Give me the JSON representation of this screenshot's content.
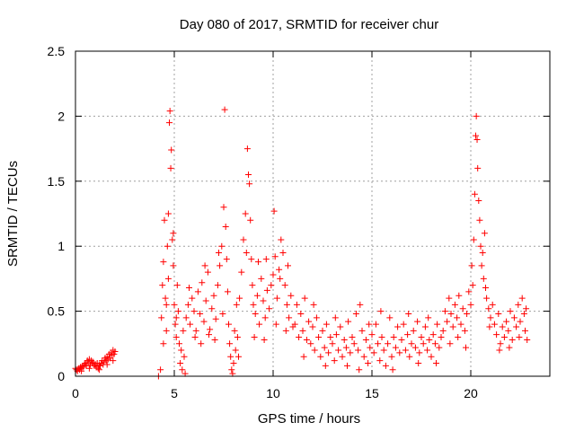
{
  "chart_data": {
    "type": "scatter",
    "title": "Day 080 of 2017, SRMTID for receiver chur",
    "xlabel": "GPS time / hours",
    "ylabel": "SRMTID / TECUs",
    "xlim": [
      0,
      24
    ],
    "ylim": [
      0,
      2.5
    ],
    "xticks": [
      0,
      5,
      10,
      15,
      20
    ],
    "xtick_labels": [
      "0",
      "5",
      "10",
      "15",
      "20"
    ],
    "yticks": [
      0,
      0.5,
      1,
      1.5,
      2,
      2.5
    ],
    "ytick_labels": [
      "0",
      "0.5",
      "1",
      "1.5",
      "2",
      "2.5"
    ],
    "grid": true,
    "marker": "+",
    "marker_color": "#ff0000",
    "series": [
      {
        "name": "SRMTID",
        "points": [
          [
            0.0,
            0.06
          ],
          [
            0.05,
            0.05
          ],
          [
            0.1,
            0.04
          ],
          [
            0.15,
            0.06
          ],
          [
            0.2,
            0.05
          ],
          [
            0.25,
            0.07
          ],
          [
            0.3,
            0.06
          ],
          [
            0.35,
            0.08
          ],
          [
            0.4,
            0.07
          ],
          [
            0.45,
            0.09
          ],
          [
            0.5,
            0.1
          ],
          [
            0.55,
            0.08
          ],
          [
            0.6,
            0.12
          ],
          [
            0.65,
            0.11
          ],
          [
            0.7,
            0.13
          ],
          [
            0.75,
            0.09
          ],
          [
            0.8,
            0.12
          ],
          [
            0.85,
            0.1
          ],
          [
            0.9,
            0.11
          ],
          [
            0.95,
            0.08
          ],
          [
            1.0,
            0.09
          ],
          [
            1.05,
            0.07
          ],
          [
            1.1,
            0.1
          ],
          [
            1.15,
            0.06
          ],
          [
            1.2,
            0.09
          ],
          [
            1.25,
            0.08
          ],
          [
            1.3,
            0.1
          ],
          [
            1.35,
            0.12
          ],
          [
            1.4,
            0.09
          ],
          [
            1.45,
            0.11
          ],
          [
            1.5,
            0.14
          ],
          [
            1.55,
            0.12
          ],
          [
            1.6,
            0.15
          ],
          [
            1.65,
            0.13
          ],
          [
            1.7,
            0.17
          ],
          [
            1.75,
            0.14
          ],
          [
            1.8,
            0.18
          ],
          [
            1.85,
            0.16
          ],
          [
            1.9,
            0.2
          ],
          [
            1.95,
            0.17
          ],
          [
            2.0,
            0.19
          ],
          [
            0.3,
            0.04
          ],
          [
            0.7,
            0.06
          ],
          [
            1.2,
            0.05
          ],
          [
            1.6,
            0.09
          ],
          [
            1.9,
            0.12
          ],
          [
            4.2,
            0.0
          ],
          [
            4.3,
            0.05
          ],
          [
            4.35,
            0.45
          ],
          [
            4.4,
            0.7
          ],
          [
            4.45,
            0.88
          ],
          [
            4.5,
            1.2
          ],
          [
            4.55,
            0.6
          ],
          [
            4.6,
            0.35
          ],
          [
            4.65,
            1.0
          ],
          [
            4.7,
            1.25
          ],
          [
            4.75,
            1.95
          ],
          [
            4.78,
            2.04
          ],
          [
            4.82,
            1.6
          ],
          [
            4.85,
            1.74
          ],
          [
            4.9,
            1.05
          ],
          [
            4.95,
            0.85
          ],
          [
            5.0,
            0.55
          ],
          [
            5.05,
            0.4
          ],
          [
            5.1,
            0.3
          ],
          [
            5.15,
            0.7
          ],
          [
            5.2,
            0.5
          ],
          [
            5.25,
            0.25
          ],
          [
            5.3,
            0.1
          ],
          [
            5.35,
            0.2
          ],
          [
            5.4,
            0.05
          ],
          [
            5.45,
            0.35
          ],
          [
            5.5,
            0.15
          ],
          [
            5.55,
            0.02
          ],
          [
            4.45,
            0.25
          ],
          [
            4.6,
            0.55
          ],
          [
            4.7,
            0.75
          ],
          [
            4.95,
            1.1
          ],
          [
            5.1,
            0.45
          ],
          [
            5.6,
            0.45
          ],
          [
            5.7,
            0.55
          ],
          [
            5.8,
            0.4
          ],
          [
            5.9,
            0.6
          ],
          [
            6.0,
            0.5
          ],
          [
            6.1,
            0.35
          ],
          [
            6.2,
            0.65
          ],
          [
            6.3,
            0.48
          ],
          [
            6.4,
            0.72
          ],
          [
            6.5,
            0.42
          ],
          [
            6.6,
            0.58
          ],
          [
            6.7,
            0.8
          ],
          [
            6.8,
            0.36
          ],
          [
            6.9,
            0.52
          ],
          [
            7.0,
            0.62
          ],
          [
            7.1,
            0.44
          ],
          [
            7.2,
            0.7
          ],
          [
            7.3,
            0.85
          ],
          [
            7.4,
            1.0
          ],
          [
            7.5,
            1.3
          ],
          [
            7.55,
            2.05
          ],
          [
            7.6,
            1.15
          ],
          [
            7.65,
            0.9
          ],
          [
            7.7,
            0.65
          ],
          [
            7.75,
            0.4
          ],
          [
            7.8,
            0.25
          ],
          [
            7.85,
            0.15
          ],
          [
            7.9,
            0.05
          ],
          [
            7.95,
            0.02
          ],
          [
            8.0,
            0.1
          ],
          [
            8.05,
            0.35
          ],
          [
            8.1,
            0.2
          ],
          [
            8.15,
            0.55
          ],
          [
            8.2,
            0.3
          ],
          [
            8.3,
            0.6
          ],
          [
            8.4,
            0.8
          ],
          [
            8.5,
            1.05
          ],
          [
            8.6,
            1.25
          ],
          [
            8.65,
            0.95
          ],
          [
            8.7,
            1.75
          ],
          [
            8.75,
            1.55
          ],
          [
            8.8,
            1.48
          ],
          [
            8.85,
            1.2
          ],
          [
            8.9,
            0.9
          ],
          [
            8.95,
            0.7
          ],
          [
            9.0,
            0.55
          ],
          [
            9.1,
            0.48
          ],
          [
            9.2,
            0.62
          ],
          [
            9.3,
            0.4
          ],
          [
            9.4,
            0.75
          ],
          [
            9.5,
            0.58
          ],
          [
            9.6,
            0.45
          ],
          [
            9.7,
            0.66
          ],
          [
            9.8,
            0.52
          ],
          [
            9.9,
            0.7
          ],
          [
            10.0,
            0.78
          ],
          [
            10.05,
            1.27
          ],
          [
            10.1,
            0.92
          ],
          [
            10.2,
            0.6
          ],
          [
            10.3,
            0.82
          ],
          [
            10.4,
            1.05
          ],
          [
            10.5,
            0.95
          ],
          [
            10.6,
            0.7
          ],
          [
            10.7,
            0.55
          ],
          [
            10.8,
            0.45
          ],
          [
            10.9,
            0.62
          ],
          [
            11.0,
            0.38
          ],
          [
            6.05,
            0.3
          ],
          [
            6.35,
            0.25
          ],
          [
            6.75,
            0.32
          ],
          [
            7.05,
            0.28
          ],
          [
            7.45,
            0.48
          ],
          [
            8.25,
            0.15
          ],
          [
            9.05,
            0.3
          ],
          [
            9.55,
            0.28
          ],
          [
            10.15,
            0.4
          ],
          [
            10.65,
            0.35
          ],
          [
            5.75,
            0.68
          ],
          [
            6.55,
            0.85
          ],
          [
            7.25,
            0.95
          ],
          [
            9.25,
            0.88
          ],
          [
            9.65,
            0.9
          ],
          [
            10.35,
            0.75
          ],
          [
            10.75,
            0.85
          ],
          [
            11.1,
            0.4
          ],
          [
            11.2,
            0.55
          ],
          [
            11.3,
            0.3
          ],
          [
            11.4,
            0.48
          ],
          [
            11.5,
            0.35
          ],
          [
            11.6,
            0.6
          ],
          [
            11.7,
            0.28
          ],
          [
            11.8,
            0.42
          ],
          [
            11.9,
            0.25
          ],
          [
            12.0,
            0.38
          ],
          [
            12.1,
            0.2
          ],
          [
            12.2,
            0.45
          ],
          [
            12.3,
            0.3
          ],
          [
            12.4,
            0.15
          ],
          [
            12.5,
            0.35
          ],
          [
            12.6,
            0.22
          ],
          [
            12.7,
            0.4
          ],
          [
            12.8,
            0.18
          ],
          [
            12.9,
            0.3
          ],
          [
            13.0,
            0.25
          ],
          [
            13.1,
            0.12
          ],
          [
            13.2,
            0.32
          ],
          [
            13.3,
            0.2
          ],
          [
            13.4,
            0.38
          ],
          [
            13.5,
            0.15
          ],
          [
            13.6,
            0.28
          ],
          [
            13.7,
            0.22
          ],
          [
            13.8,
            0.42
          ],
          [
            13.9,
            0.18
          ],
          [
            14.0,
            0.3
          ],
          [
            14.1,
            0.25
          ],
          [
            14.2,
            0.48
          ],
          [
            14.3,
            0.2
          ],
          [
            14.4,
            0.55
          ],
          [
            14.5,
            0.35
          ],
          [
            14.6,
            0.15
          ],
          [
            14.7,
            0.28
          ],
          [
            14.8,
            0.1
          ],
          [
            14.9,
            0.22
          ],
          [
            15.0,
            0.32
          ],
          [
            15.1,
            0.18
          ],
          [
            15.2,
            0.4
          ],
          [
            15.3,
            0.25
          ],
          [
            15.4,
            0.12
          ],
          [
            15.5,
            0.3
          ],
          [
            15.6,
            0.2
          ],
          [
            15.7,
            0.08
          ],
          [
            15.8,
            0.25
          ],
          [
            15.9,
            0.45
          ],
          [
            16.0,
            0.15
          ],
          [
            16.1,
            0.3
          ],
          [
            16.2,
            0.22
          ],
          [
            16.3,
            0.38
          ],
          [
            16.4,
            0.18
          ],
          [
            16.5,
            0.28
          ],
          [
            16.6,
            0.4
          ],
          [
            16.7,
            0.2
          ],
          [
            16.8,
            0.32
          ],
          [
            16.9,
            0.15
          ],
          [
            17.0,
            0.25
          ],
          [
            17.1,
            0.35
          ],
          [
            17.2,
            0.22
          ],
          [
            17.3,
            0.42
          ],
          [
            17.4,
            0.18
          ],
          [
            17.5,
            0.3
          ],
          [
            17.6,
            0.25
          ],
          [
            17.7,
            0.38
          ],
          [
            17.8,
            0.2
          ],
          [
            17.9,
            0.28
          ],
          [
            18.0,
            0.15
          ],
          [
            18.1,
            0.32
          ],
          [
            18.2,
            0.25
          ],
          [
            18.3,
            0.4
          ],
          [
            18.4,
            0.22
          ],
          [
            18.5,
            0.3
          ],
          [
            11.55,
            0.15
          ],
          [
            12.05,
            0.55
          ],
          [
            12.65,
            0.08
          ],
          [
            13.15,
            0.45
          ],
          [
            13.75,
            0.08
          ],
          [
            14.35,
            0.05
          ],
          [
            14.85,
            0.4
          ],
          [
            15.45,
            0.5
          ],
          [
            16.05,
            0.05
          ],
          [
            16.85,
            0.48
          ],
          [
            17.35,
            0.1
          ],
          [
            17.85,
            0.45
          ],
          [
            18.25,
            0.1
          ],
          [
            18.6,
            0.35
          ],
          [
            18.7,
            0.5
          ],
          [
            18.8,
            0.42
          ],
          [
            18.9,
            0.6
          ],
          [
            19.0,
            0.48
          ],
          [
            19.1,
            0.38
          ],
          [
            19.2,
            0.55
          ],
          [
            19.3,
            0.45
          ],
          [
            19.4,
            0.62
          ],
          [
            19.5,
            0.4
          ],
          [
            19.6,
            0.52
          ],
          [
            19.7,
            0.35
          ],
          [
            19.8,
            0.48
          ],
          [
            19.9,
            0.65
          ],
          [
            20.0,
            0.55
          ],
          [
            20.05,
            0.85
          ],
          [
            20.1,
            0.7
          ],
          [
            20.15,
            1.05
          ],
          [
            20.2,
            1.4
          ],
          [
            20.25,
            1.85
          ],
          [
            20.28,
            2.0
          ],
          [
            20.32,
            1.82
          ],
          [
            20.35,
            1.6
          ],
          [
            20.4,
            1.35
          ],
          [
            20.45,
            1.2
          ],
          [
            20.5,
            1.0
          ],
          [
            20.55,
            0.85
          ],
          [
            20.6,
            0.95
          ],
          [
            20.65,
            0.75
          ],
          [
            20.7,
            1.1
          ],
          [
            20.75,
            0.68
          ],
          [
            20.8,
            0.6
          ],
          [
            20.9,
            0.52
          ],
          [
            21.0,
            0.45
          ],
          [
            21.1,
            0.55
          ],
          [
            21.2,
            0.4
          ],
          [
            21.3,
            0.32
          ],
          [
            21.4,
            0.48
          ],
          [
            21.5,
            0.25
          ],
          [
            21.6,
            0.38
          ],
          [
            21.7,
            0.3
          ],
          [
            21.8,
            0.42
          ],
          [
            21.9,
            0.35
          ],
          [
            22.0,
            0.5
          ],
          [
            22.1,
            0.28
          ],
          [
            22.2,
            0.45
          ],
          [
            22.3,
            0.38
          ],
          [
            22.4,
            0.55
          ],
          [
            22.5,
            0.42
          ],
          [
            22.6,
            0.6
          ],
          [
            22.7,
            0.48
          ],
          [
            22.75,
            0.35
          ],
          [
            22.8,
            0.52
          ],
          [
            18.95,
            0.25
          ],
          [
            19.35,
            0.3
          ],
          [
            19.75,
            0.22
          ],
          [
            20.95,
            0.38
          ],
          [
            21.45,
            0.2
          ],
          [
            21.95,
            0.22
          ],
          [
            22.45,
            0.3
          ],
          [
            22.85,
            0.28
          ]
        ]
      }
    ]
  }
}
